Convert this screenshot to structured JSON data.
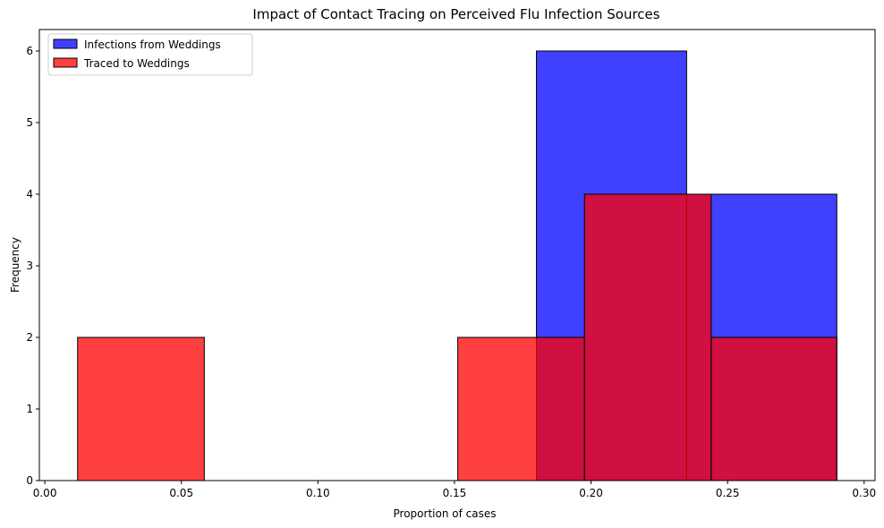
{
  "chart_data": {
    "type": "bar",
    "title": "Impact of Contact Tracing on Perceived Flu Infection Sources",
    "xlabel": "Proportion of cases",
    "ylabel": "Frequency",
    "xlim": [
      -0.002,
      0.304
    ],
    "ylim": [
      0,
      6.3
    ],
    "xticks": [
      0.0,
      0.05,
      0.1,
      0.15,
      0.2,
      0.25,
      0.3
    ],
    "xtick_labels": [
      "0.00",
      "0.05",
      "0.10",
      "0.15",
      "0.20",
      "0.25",
      "0.30"
    ],
    "yticks": [
      0,
      1,
      2,
      3,
      4,
      5,
      6
    ],
    "ytick_labels": [
      "0",
      "1",
      "2",
      "3",
      "4",
      "5",
      "6"
    ],
    "legend_position": "top-left",
    "grid": false,
    "series": [
      {
        "name": "Infections from Weddings",
        "color": "#0000ff",
        "bins": [
          {
            "x0": 0.18,
            "x1": 0.235,
            "count": 6
          },
          {
            "x0": 0.235,
            "x1": 0.29,
            "count": 4
          }
        ]
      },
      {
        "name": "Traced to Weddings",
        "color": "#ff0000",
        "bins": [
          {
            "x0": 0.012,
            "x1": 0.0584,
            "count": 2
          },
          {
            "x0": 0.0584,
            "x1": 0.1048,
            "count": 0
          },
          {
            "x0": 0.1048,
            "x1": 0.1512,
            "count": 0
          },
          {
            "x0": 0.1512,
            "x1": 0.1976,
            "count": 2
          },
          {
            "x0": 0.1976,
            "x1": 0.244,
            "count": 4
          },
          {
            "x0": 0.244,
            "x1": 0.29,
            "count": 2
          }
        ]
      }
    ]
  }
}
